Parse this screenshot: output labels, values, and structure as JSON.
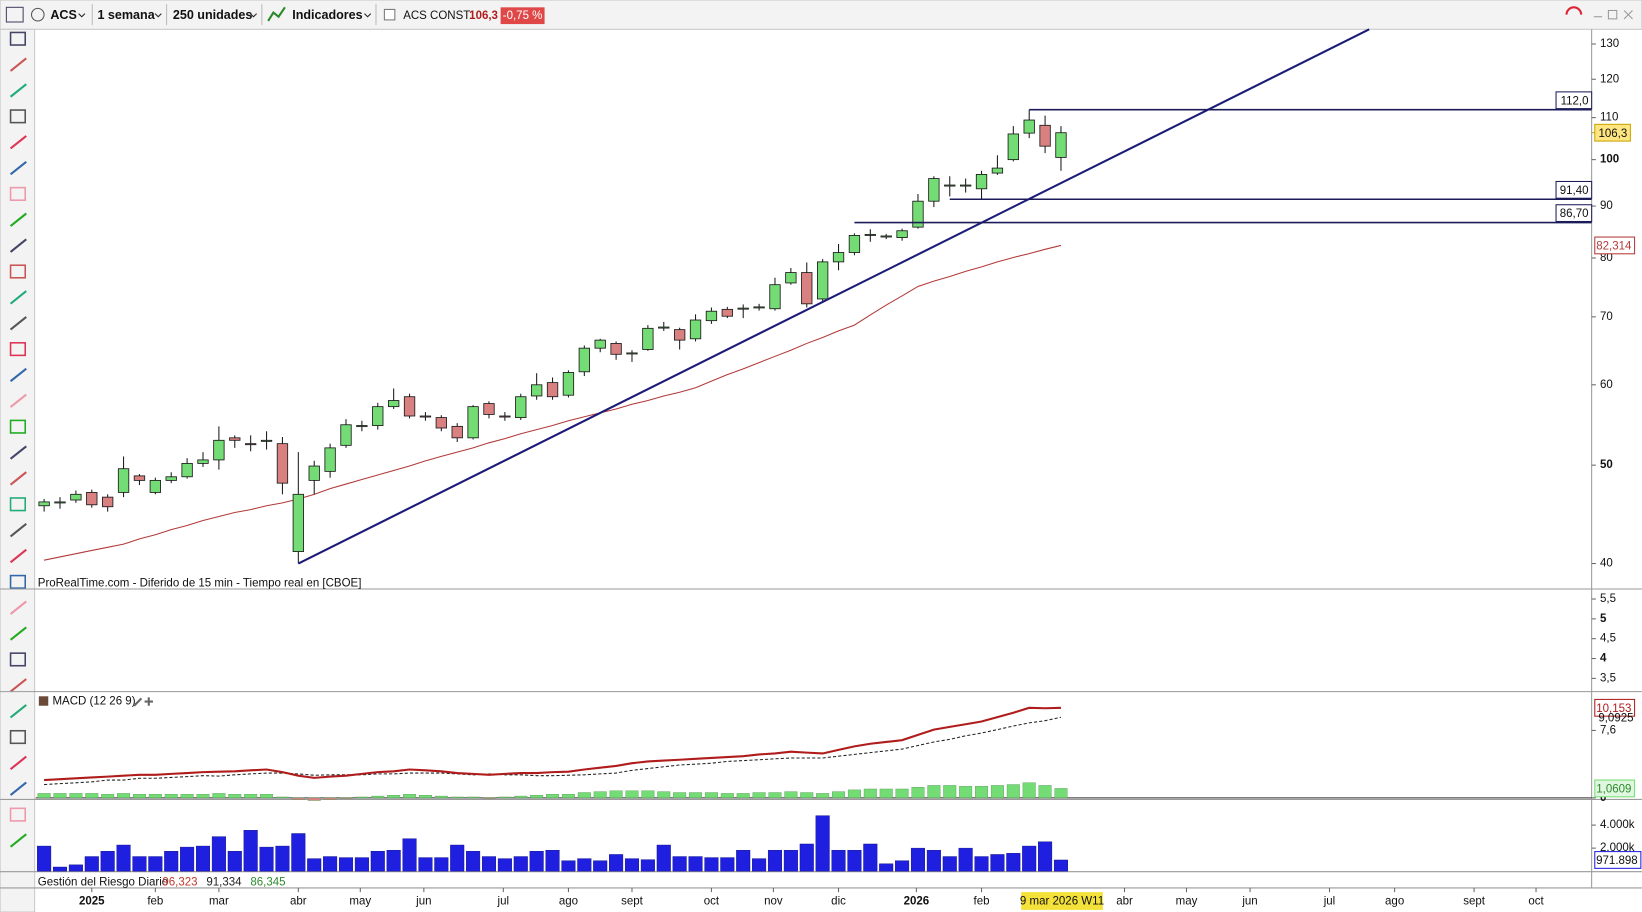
{
  "toolbar": {
    "symbol": "ACS",
    "period": "1 semana",
    "units": "250 unidades",
    "indicators": "Indicadores",
    "instrument": "ACS CONST.",
    "price": "106,3",
    "change": "-0,75 %"
  },
  "chart_data": [
    {
      "type": "candlestick",
      "source": "ProRealTime.com - Diferido de 15 min - Tiempo real en [CBOE]",
      "log_scale": true,
      "ylim": [
        37.8,
        134.4
      ],
      "yticks": [
        40,
        50,
        60,
        70,
        80,
        90,
        100,
        110,
        120,
        130
      ],
      "xlim": [
        -0.53,
        97.4
      ],
      "xticks": [
        {
          "value": 3,
          "label": "2025"
        },
        {
          "value": 7,
          "label": "feb"
        },
        {
          "value": 11,
          "label": "mar"
        },
        {
          "value": 16,
          "label": "abr"
        },
        {
          "value": 19.9,
          "label": "may"
        },
        {
          "value": 23.9,
          "label": "jun"
        },
        {
          "value": 28.9,
          "label": "jul"
        },
        {
          "value": 33,
          "label": "ago"
        },
        {
          "value": 37,
          "label": "sept"
        },
        {
          "value": 42,
          "label": "oct"
        },
        {
          "value": 45.9,
          "label": "nov"
        },
        {
          "value": 50,
          "label": "dic"
        },
        {
          "value": 54.9,
          "label": "2026"
        },
        {
          "value": 59,
          "label": "feb"
        },
        {
          "value": 68,
          "label": "abr"
        },
        {
          "value": 71.9,
          "label": "may"
        },
        {
          "value": 75.9,
          "label": "jun"
        },
        {
          "value": 80.9,
          "label": "jul"
        },
        {
          "value": 85,
          "label": "ago"
        },
        {
          "value": 90,
          "label": "sept"
        },
        {
          "value": 93.9,
          "label": "oct"
        }
      ],
      "up_color": "#74dc74",
      "down_color": "#d98080",
      "outline_color": "#1a1a1a",
      "open": [
        45.6,
        45.9,
        46.2,
        47.0,
        46.5,
        47.0,
        48.8,
        47.0,
        48.3,
        48.7,
        50.2,
        50.6,
        53.2,
        52.5,
        52.8,
        52.5,
        41.1,
        48.3,
        49.3,
        52.3,
        54.6,
        54.7,
        57.1,
        58.4,
        55.9,
        55.7,
        54.6,
        53.2,
        57.5,
        55.9,
        55.7,
        58.5,
        60.3,
        58.6,
        61.8,
        65.2,
        65.9,
        64.4,
        65.0,
        68.3,
        68.0,
        66.6,
        69.4,
        71.2,
        71.3,
        71.5,
        71.3,
        75.6,
        77.4,
        72.9,
        79.3,
        81.0,
        84.3,
        84.0,
        83.8,
        85.8,
        91.0,
        94.3,
        94.3,
        93.6,
        97.0,
        100.0,
        106.2,
        108.1,
        100.5
      ],
      "high": [
        46.3,
        46.5,
        47.2,
        47.3,
        46.8,
        51.0,
        49.0,
        48.6,
        49.2,
        50.8,
        51.5,
        54.6,
        53.5,
        53.5,
        54.0,
        53.3,
        51.5,
        50.5,
        52.5,
        55.5,
        55.3,
        57.6,
        59.5,
        58.8,
        56.4,
        56.0,
        55.0,
        57.3,
        57.8,
        56.4,
        58.8,
        61.6,
        61.0,
        62.0,
        65.6,
        66.6,
        66.2,
        64.9,
        68.7,
        69.2,
        68.3,
        70.4,
        71.5,
        71.6,
        72.0,
        72.1,
        76.5,
        78.2,
        79.2,
        79.8,
        82.6,
        84.6,
        85.4,
        84.5,
        85.5,
        92.5,
        96.3,
        96.3,
        95.8,
        97.5,
        101.0,
        107.9,
        112.0,
        110.5,
        107.9
      ],
      "low": [
        45.0,
        45.3,
        45.9,
        45.4,
        45.0,
        46.5,
        47.8,
        46.8,
        48.0,
        48.5,
        49.8,
        49.5,
        52.0,
        51.6,
        51.8,
        46.8,
        40.0,
        46.8,
        48.6,
        52.0,
        54.0,
        54.2,
        56.8,
        55.6,
        55.3,
        54.0,
        52.7,
        53.0,
        55.6,
        55.3,
        55.4,
        58.0,
        58.0,
        58.3,
        61.2,
        64.6,
        63.5,
        63.2,
        64.8,
        67.8,
        65.0,
        66.2,
        68.9,
        69.8,
        69.8,
        71.0,
        71.0,
        75.3,
        71.5,
        72.3,
        77.8,
        80.5,
        83.0,
        83.5,
        83.2,
        85.5,
        89.8,
        92.0,
        92.8,
        91.4,
        96.6,
        99.6,
        105.0,
        101.5,
        97.5
      ],
      "close": [
        46.0,
        46.0,
        46.8,
        45.7,
        45.5,
        49.6,
        48.3,
        48.3,
        48.7,
        50.2,
        50.6,
        52.9,
        52.9,
        52.4,
        52.9,
        48.0,
        46.8,
        49.9,
        52.0,
        54.8,
        54.7,
        57.1,
        57.9,
        55.9,
        55.8,
        54.4,
        53.2,
        57.1,
        56.1,
        55.8,
        58.4,
        60.0,
        58.4,
        61.7,
        65.2,
        66.4,
        64.3,
        64.5,
        68.2,
        68.4,
        66.4,
        69.5,
        70.9,
        70.1,
        71.4,
        71.6,
        75.3,
        77.4,
        72.1,
        79.3,
        81.0,
        84.2,
        84.4,
        84.1,
        85.1,
        91.0,
        95.8,
        94.4,
        94.4,
        96.7,
        98.1,
        106.0,
        109.4,
        103.1,
        106.3
      ],
      "moving_average": {
        "color": "#b23a3a",
        "values": [
          40.3,
          40.6,
          40.9,
          41.2,
          41.5,
          41.8,
          42.3,
          42.7,
          43.2,
          43.6,
          44.1,
          44.5,
          44.9,
          45.2,
          45.6,
          45.9,
          46.3,
          46.8,
          47.4,
          47.9,
          48.4,
          48.9,
          49.4,
          49.9,
          50.5,
          51.0,
          51.5,
          52.0,
          52.6,
          53.1,
          53.7,
          54.2,
          54.7,
          55.3,
          55.8,
          56.3,
          56.8,
          57.4,
          57.9,
          58.5,
          59.0,
          59.6,
          60.5,
          61.4,
          62.2,
          63.1,
          64.0,
          64.9,
          65.9,
          66.8,
          67.8,
          68.7,
          70.3,
          71.9,
          73.4,
          75.0,
          75.9,
          76.7,
          77.6,
          78.4,
          79.3,
          80.1,
          80.8,
          81.6,
          82.314
        ],
        "last_label": "82,314"
      },
      "trendline": {
        "color": "#1c1c78",
        "x": [
          16,
          83.4
        ],
        "y": [
          40.0,
          134.4
        ]
      },
      "levels": [
        {
          "value": 112.0,
          "label": "112,0",
          "x_start": 62
        },
        {
          "value": 91.4,
          "label": "91,40",
          "x_start": 57
        },
        {
          "value": 86.7,
          "label": "86,70",
          "x_start": 51
        }
      ],
      "level_color": "#1c1c5a",
      "last_price": {
        "value": 106.3,
        "label": "106,3"
      },
      "cursor_label": "9 mar 2026 W11"
    },
    {
      "type": "line",
      "ylim": [
        3.18,
        5.74
      ],
      "yticks": [
        {
          "value": 5.5,
          "label": "5,5"
        },
        5,
        {
          "value": 4.5,
          "label": "4,5"
        },
        4,
        {
          "value": 3.5,
          "label": "3,5"
        }
      ],
      "series": []
    },
    {
      "type": "macd",
      "title": "MACD (12 26 9)",
      "ylim": [
        -0.12,
        11.92
      ],
      "yticks": [
        0,
        {
          "value": 7.6,
          "label": "7,6"
        }
      ],
      "macd_line": {
        "color": "#b01c1c",
        "values": [
          2.0,
          2.1,
          2.2,
          2.3,
          2.4,
          2.5,
          2.6,
          2.6,
          2.7,
          2.8,
          2.9,
          2.95,
          3.0,
          3.1,
          3.2,
          2.9,
          2.5,
          2.25,
          2.4,
          2.5,
          2.7,
          2.9,
          3.0,
          3.2,
          3.1,
          3.0,
          2.8,
          2.7,
          2.6,
          2.7,
          2.8,
          2.8,
          2.9,
          2.95,
          3.2,
          3.4,
          3.6,
          3.9,
          4.1,
          4.2,
          4.3,
          4.4,
          4.5,
          4.6,
          4.7,
          4.9,
          5.0,
          5.2,
          5.1,
          5.0,
          5.4,
          5.8,
          6.1,
          6.3,
          6.5,
          7.1,
          7.7,
          8.0,
          8.3,
          8.6,
          9.1,
          9.6,
          10.15,
          10.1,
          10.153
        ],
        "last_label": "10,153"
      },
      "signal_line": {
        "color": "#222222",
        "values": [
          1.5,
          1.6,
          1.7,
          1.8,
          2.0,
          2.0,
          2.2,
          2.2,
          2.3,
          2.4,
          2.5,
          2.45,
          2.6,
          2.7,
          2.8,
          2.8,
          2.7,
          2.55,
          2.6,
          2.6,
          2.6,
          2.7,
          2.7,
          2.8,
          2.8,
          2.8,
          2.7,
          2.6,
          2.7,
          2.6,
          2.6,
          2.5,
          2.5,
          2.55,
          2.6,
          2.7,
          2.8,
          3.1,
          3.3,
          3.5,
          3.7,
          3.8,
          3.9,
          4.1,
          4.2,
          4.3,
          4.4,
          4.5,
          4.5,
          4.5,
          4.7,
          4.9,
          5.1,
          5.3,
          5.5,
          5.9,
          6.3,
          6.6,
          7.0,
          7.3,
          7.7,
          8.1,
          8.45,
          8.7,
          9.0925
        ],
        "last_label": "9,0925"
      },
      "histogram": {
        "up_color": "#74dc74",
        "down_color": "#d98080",
        "values": [
          0.5,
          0.5,
          0.5,
          0.5,
          0.4,
          0.5,
          0.4,
          0.4,
          0.4,
          0.4,
          0.4,
          0.5,
          0.4,
          0.4,
          0.4,
          0.1,
          -0.2,
          -0.3,
          -0.2,
          -0.1,
          0.1,
          0.2,
          0.3,
          0.4,
          0.3,
          0.2,
          0.1,
          0.1,
          -0.1,
          0.1,
          0.2,
          0.3,
          0.4,
          0.4,
          0.6,
          0.7,
          0.8,
          0.8,
          0.8,
          0.7,
          0.6,
          0.6,
          0.6,
          0.5,
          0.5,
          0.6,
          0.6,
          0.7,
          0.6,
          0.5,
          0.7,
          0.9,
          1.0,
          1.0,
          1.0,
          1.2,
          1.4,
          1.4,
          1.3,
          1.3,
          1.4,
          1.5,
          1.7,
          1.4,
          1.0609
        ],
        "last_label": "1,0609"
      }
    },
    {
      "type": "bar",
      "title": "Gestión del Riesgo Diario",
      "stats": [
        {
          "value": 96.323,
          "label": "96,323",
          "color": "#c0392b"
        },
        {
          "value": 91.334,
          "label": "91,334",
          "color": "#222222"
        },
        {
          "value": 86.345,
          "label": "86,345",
          "color": "#2e8b2e"
        }
      ],
      "ylim": [
        0,
        6000000
      ],
      "yticks": [
        {
          "value": 2000000,
          "label": "2.000k"
        },
        {
          "value": 4000000,
          "label": "4.000k"
        }
      ],
      "color": "#1f1fe0",
      "values": [
        2180000,
        360000,
        550000,
        1270000,
        1730000,
        2270000,
        1270000,
        1270000,
        1730000,
        2090000,
        2180000,
        3000000,
        1730000,
        3550000,
        2090000,
        2180000,
        3270000,
        1090000,
        1270000,
        1180000,
        1180000,
        1730000,
        1820000,
        2820000,
        1180000,
        1180000,
        2270000,
        1730000,
        1270000,
        1090000,
        1270000,
        1730000,
        1820000,
        910000,
        1090000,
        910000,
        1450000,
        1090000,
        1000000,
        2270000,
        1270000,
        1270000,
        1180000,
        1180000,
        1820000,
        1090000,
        1820000,
        1820000,
        2360000,
        4820000,
        1820000,
        1820000,
        2360000,
        640000,
        910000,
        2000000,
        1820000,
        1270000,
        2000000,
        1270000,
        1450000,
        1550000,
        2180000,
        2550000,
        971898
      ],
      "value_labels": [
        null,
        null,
        null,
        null,
        null,
        null,
        null,
        null,
        null,
        null,
        null,
        null,
        null,
        null,
        null,
        null,
        null,
        null,
        null,
        null,
        null,
        null,
        null,
        null,
        null,
        null,
        null,
        null,
        null,
        null,
        null,
        null,
        null,
        null,
        null,
        null,
        null,
        null,
        null,
        null,
        null,
        null,
        null,
        null,
        null,
        null,
        null,
        null,
        null,
        null,
        null,
        null,
        null,
        null,
        null,
        null,
        null,
        null,
        null,
        null,
        null,
        null,
        null,
        null,
        "971.898"
      ]
    }
  ]
}
